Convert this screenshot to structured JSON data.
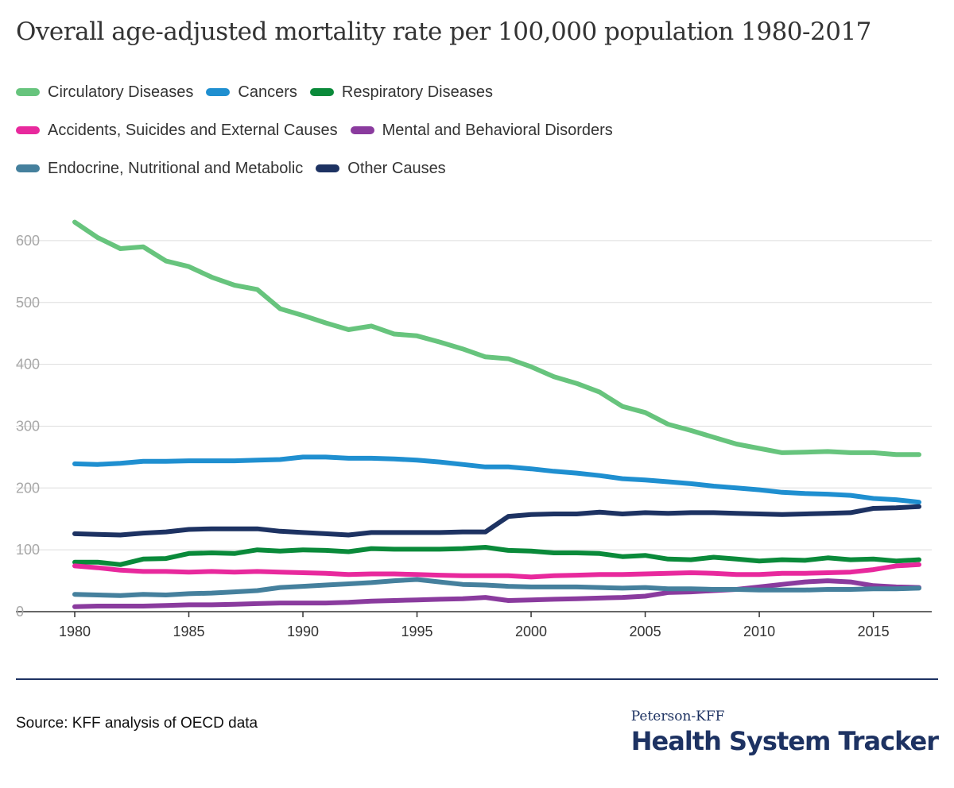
{
  "title": "Overall age-adjusted mortality rate per 100,000 population 1980-2017",
  "source": "Source: KFF analysis of OECD data",
  "brand": {
    "small": "Peterson-KFF",
    "big": "Health System Tracker"
  },
  "chart_data": {
    "type": "line",
    "x": [
      1980,
      1981,
      1982,
      1983,
      1984,
      1985,
      1986,
      1987,
      1988,
      1989,
      1990,
      1991,
      1992,
      1993,
      1994,
      1995,
      1996,
      1997,
      1998,
      1999,
      2000,
      2001,
      2002,
      2003,
      2004,
      2005,
      2006,
      2007,
      2008,
      2009,
      2010,
      2011,
      2012,
      2013,
      2014,
      2015,
      2016,
      2017
    ],
    "xticks": [
      1980,
      1985,
      1990,
      1995,
      2000,
      2005,
      2010,
      2015
    ],
    "yticks": [
      0,
      100,
      200,
      300,
      400,
      500,
      600
    ],
    "ylim": [
      0,
      650
    ],
    "xlim": [
      1980,
      2017
    ],
    "grid": true,
    "legend_position": "top",
    "series": [
      {
        "name": "Circulatory Diseases",
        "color": "#67c47d",
        "values": [
          630,
          605,
          587,
          590,
          567,
          558,
          541,
          528,
          521,
          490,
          479,
          467,
          456,
          462,
          449,
          446,
          436,
          425,
          412,
          409,
          396,
          380,
          369,
          355,
          332,
          322,
          303,
          293,
          282,
          271,
          264,
          257,
          258,
          259,
          257,
          257,
          254,
          254
        ]
      },
      {
        "name": "Cancers",
        "color": "#1f8fd0",
        "values": [
          239,
          238,
          240,
          243,
          243,
          244,
          244,
          244,
          245,
          246,
          250,
          250,
          248,
          248,
          247,
          245,
          242,
          238,
          234,
          234,
          231,
          227,
          224,
          220,
          215,
          213,
          210,
          207,
          203,
          200,
          197,
          193,
          191,
          190,
          188,
          183,
          181,
          177
        ]
      },
      {
        "name": "Respiratory Diseases",
        "color": "#0a8a3a",
        "values": [
          80,
          80,
          76,
          85,
          86,
          94,
          95,
          94,
          100,
          98,
          100,
          99,
          97,
          102,
          101,
          101,
          101,
          102,
          104,
          99,
          98,
          95,
          95,
          94,
          89,
          91,
          85,
          84,
          88,
          85,
          82,
          84,
          83,
          87,
          84,
          85,
          82,
          84
        ]
      },
      {
        "name": "Accidents, Suicides and External Causes",
        "color": "#e8299d",
        "values": [
          74,
          71,
          67,
          65,
          65,
          64,
          65,
          64,
          65,
          64,
          63,
          62,
          60,
          61,
          61,
          60,
          59,
          58,
          58,
          58,
          56,
          58,
          59,
          60,
          60,
          61,
          62,
          63,
          62,
          60,
          60,
          62,
          62,
          63,
          64,
          68,
          74,
          76
        ]
      },
      {
        "name": "Mental and Behavioral Disorders",
        "color": "#8a3b9e",
        "values": [
          8,
          9,
          9,
          9,
          10,
          11,
          11,
          12,
          13,
          14,
          14,
          14,
          15,
          17,
          18,
          19,
          20,
          21,
          23,
          18,
          19,
          20,
          21,
          22,
          23,
          25,
          31,
          32,
          34,
          36,
          40,
          44,
          48,
          50,
          48,
          42,
          40,
          39
        ]
      },
      {
        "name": "Endocrine, Nutritional and Metabolic",
        "color": "#45809d",
        "values": [
          28,
          27,
          26,
          28,
          27,
          29,
          30,
          32,
          34,
          39,
          41,
          43,
          45,
          47,
          50,
          52,
          48,
          44,
          43,
          41,
          40,
          40,
          40,
          39,
          38,
          39,
          37,
          37,
          36,
          36,
          35,
          35,
          35,
          36,
          36,
          37,
          37,
          38
        ]
      },
      {
        "name": "Other Causes",
        "color": "#1d3262",
        "values": [
          126,
          125,
          124,
          127,
          129,
          133,
          134,
          134,
          134,
          130,
          128,
          126,
          124,
          128,
          128,
          128,
          128,
          129,
          129,
          154,
          157,
          158,
          158,
          161,
          158,
          160,
          159,
          160,
          160,
          159,
          158,
          157,
          158,
          159,
          160,
          167,
          168,
          170
        ]
      }
    ]
  }
}
